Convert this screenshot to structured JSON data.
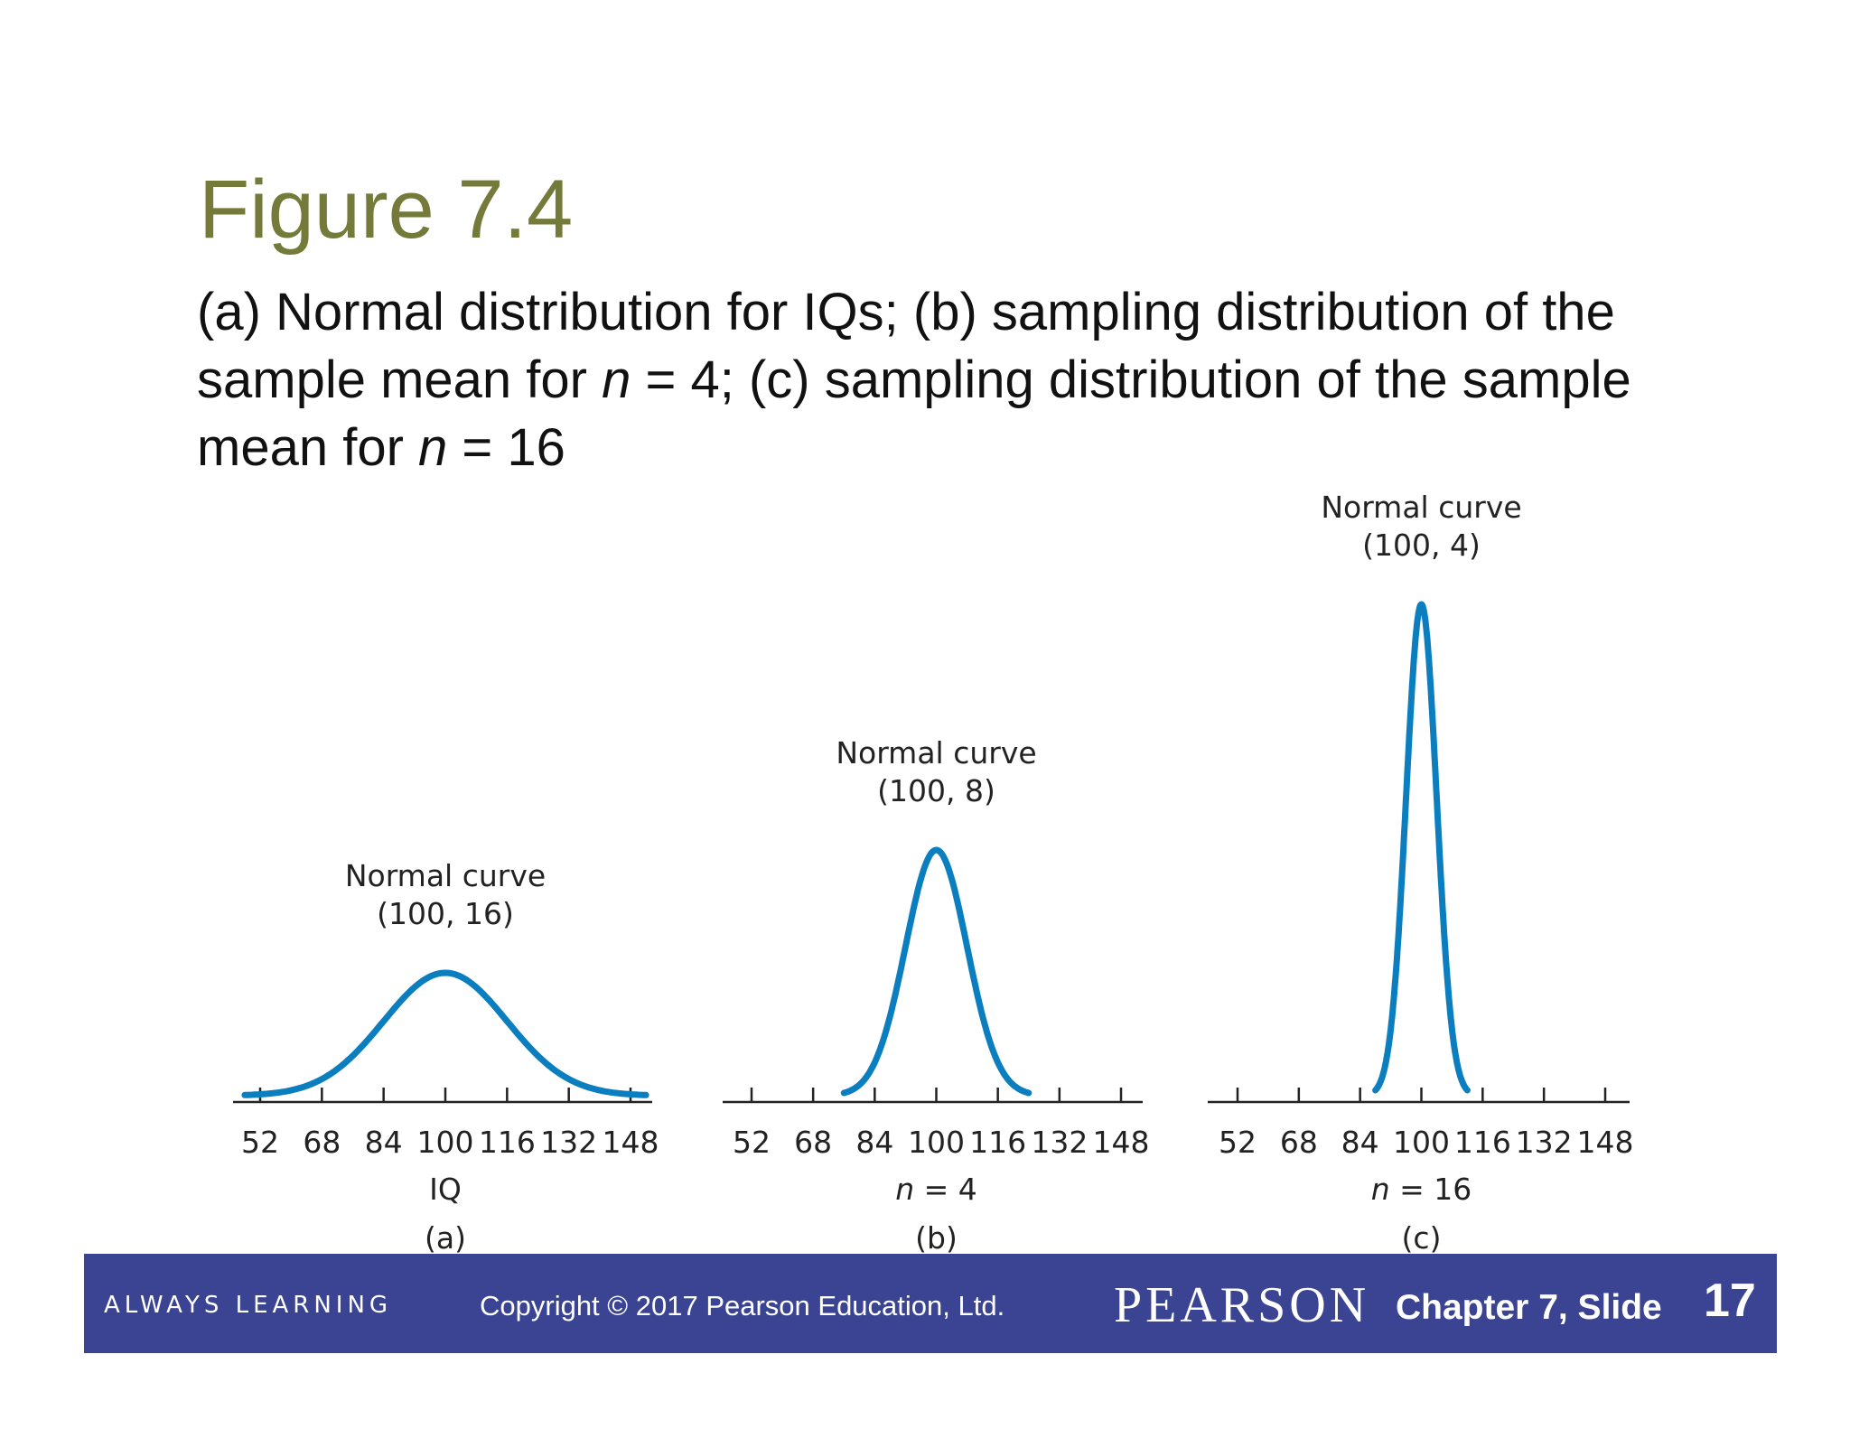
{
  "slide": {
    "title": "Figure 7.4",
    "subtitle": {
      "part1": "(a) Normal distribution for IQs; (b) sampling distribution of the sample mean for ",
      "n1_var": "n",
      "part2": " = 4; (c) sampling distribution of the sample mean for ",
      "n2_var": "n",
      "part3": " = 16"
    }
  },
  "chart_data": [
    {
      "type": "line",
      "panel": "(a)",
      "curve_label": [
        "Normal curve",
        "(100, 16)"
      ],
      "mean": 100,
      "sd": 16,
      "xlim": [
        48,
        152
      ],
      "xticks": [
        52,
        68,
        84,
        100,
        116,
        132,
        148
      ],
      "xlabel": "IQ",
      "xlabel_italic_var": "",
      "color": "#0b7ec0"
    },
    {
      "type": "line",
      "panel": "(b)",
      "curve_label": [
        "Normal curve",
        "(100, 8)"
      ],
      "mean": 100,
      "sd": 8,
      "xlim": [
        76,
        124
      ],
      "xticks": [
        52,
        68,
        84,
        100,
        116,
        132,
        148
      ],
      "xlabel": "= 4",
      "xlabel_italic_var": "n",
      "color": "#0b7ec0"
    },
    {
      "type": "line",
      "panel": "(c)",
      "curve_label": [
        "Normal curve",
        "(100, 4)"
      ],
      "mean": 100,
      "sd": 4,
      "xlim": [
        88,
        112
      ],
      "xticks": [
        52,
        68,
        84,
        100,
        116,
        132,
        148
      ],
      "xlabel": "= 16",
      "xlabel_italic_var": "n",
      "color": "#0b7ec0"
    }
  ],
  "footer": {
    "tagline": "ALWAYS LEARNING",
    "copyright": "Copyright © 2017 Pearson Education, Ltd.",
    "brand": "PEARSON",
    "chapter": "Chapter 7,  Slide",
    "slide_number": "17"
  }
}
